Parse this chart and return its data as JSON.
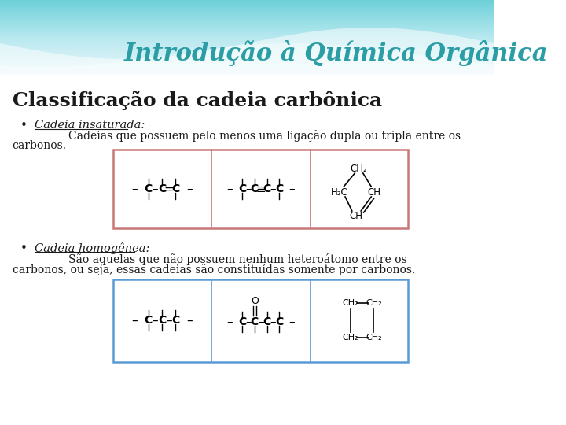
{
  "title": "Introdução à Química Orgânica",
  "bg_color": "#ffffff",
  "heading": "Classificação da cadeia carbônica",
  "bullet1_title": "Cadeia insaturada:",
  "bullet1_text1": "Cadeias que possuem pelo menos uma ligação dupla ou tripla entre os",
  "bullet1_text2": "carbonos.",
  "box1_border": "#c87878",
  "box2_border": "#5b9bd5",
  "bullet2_title": "Cadeia homogênea:",
  "bullet2_text1": "São aquelas que não possuem nenhum heteroátomo entre os",
  "bullet2_text2": "carbonos, ou seja, essas cadeias são constituídas somente por carbonos.",
  "header_color1": "#6dd0d8",
  "header_color2": "#b8e8ef",
  "header_color3": "#e8f7fa",
  "title_color": "#2a9da5",
  "text_color": "#1a1a1a"
}
